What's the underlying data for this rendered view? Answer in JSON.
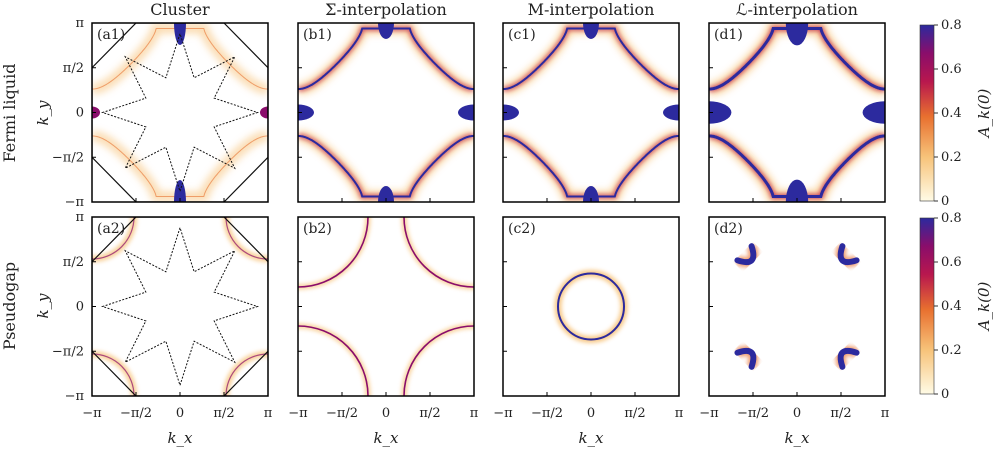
{
  "columns": [
    "Cluster",
    "Σ-interpolation",
    "M-interpolation",
    "ℒ-interpolation"
  ],
  "rows": [
    "Fermi liquid",
    "Pseudogap"
  ],
  "xlabel": "k_x",
  "ylabel": "k_y",
  "tick_labels": [
    "−π",
    "−π/2",
    "0",
    "π/2",
    "π"
  ],
  "colorbar": {
    "label": "A_k(0)",
    "ticks": [
      "0",
      "0.2",
      "0.4",
      "0.6",
      "0.8"
    ],
    "range": [
      0,
      0.8
    ],
    "colors": [
      "#fffbe6",
      "#f7c37a",
      "#e8702f",
      "#b8174e",
      "#8a0d6b",
      "#2c2a9e"
    ]
  },
  "chart_data": [
    {
      "label": "(a1)",
      "type": "heatmap",
      "row": "Fermi liquid",
      "column": "Cluster",
      "feature": "fermi-surface-arcs-with-cluster-patches",
      "xlim": [
        "−π",
        "π"
      ],
      "ylim": [
        "−π",
        "π"
      ]
    },
    {
      "label": "(b1)",
      "type": "heatmap",
      "row": "Fermi liquid",
      "column": "Σ-interpolation",
      "feature": "diamond-fermi-surface",
      "xlim": [
        "−π",
        "π"
      ],
      "ylim": [
        "−π",
        "π"
      ]
    },
    {
      "label": "(c1)",
      "type": "heatmap",
      "row": "Fermi liquid",
      "column": "M-interpolation",
      "feature": "diamond-fermi-surface",
      "xlim": [
        "−π",
        "π"
      ],
      "ylim": [
        "−π",
        "π"
      ]
    },
    {
      "label": "(d1)",
      "type": "heatmap",
      "row": "Fermi liquid",
      "column": "ℒ-interpolation",
      "feature": "diamond-fermi-surface-broadened",
      "xlim": [
        "−π",
        "π"
      ],
      "ylim": [
        "−π",
        "π"
      ]
    },
    {
      "label": "(a2)",
      "type": "heatmap",
      "row": "Pseudogap",
      "column": "Cluster",
      "feature": "weak-corner-arcs-with-cluster-patches",
      "xlim": [
        "−π",
        "π"
      ],
      "ylim": [
        "−π",
        "π"
      ]
    },
    {
      "label": "(b2)",
      "type": "heatmap",
      "row": "Pseudogap",
      "column": "Σ-interpolation",
      "feature": "corner-quarter-circles",
      "xlim": [
        "−π",
        "π"
      ],
      "ylim": [
        "−π",
        "π"
      ]
    },
    {
      "label": "(c2)",
      "type": "heatmap",
      "row": "Pseudogap",
      "column": "M-interpolation",
      "feature": "central-circle",
      "xlim": [
        "−π",
        "π"
      ],
      "ylim": [
        "−π",
        "π"
      ]
    },
    {
      "label": "(d2)",
      "type": "heatmap",
      "row": "Pseudogap",
      "column": "ℒ-interpolation",
      "feature": "fermi-pockets-near-nodes",
      "xlim": [
        "−π",
        "π"
      ],
      "ylim": [
        "−π",
        "π"
      ]
    }
  ]
}
